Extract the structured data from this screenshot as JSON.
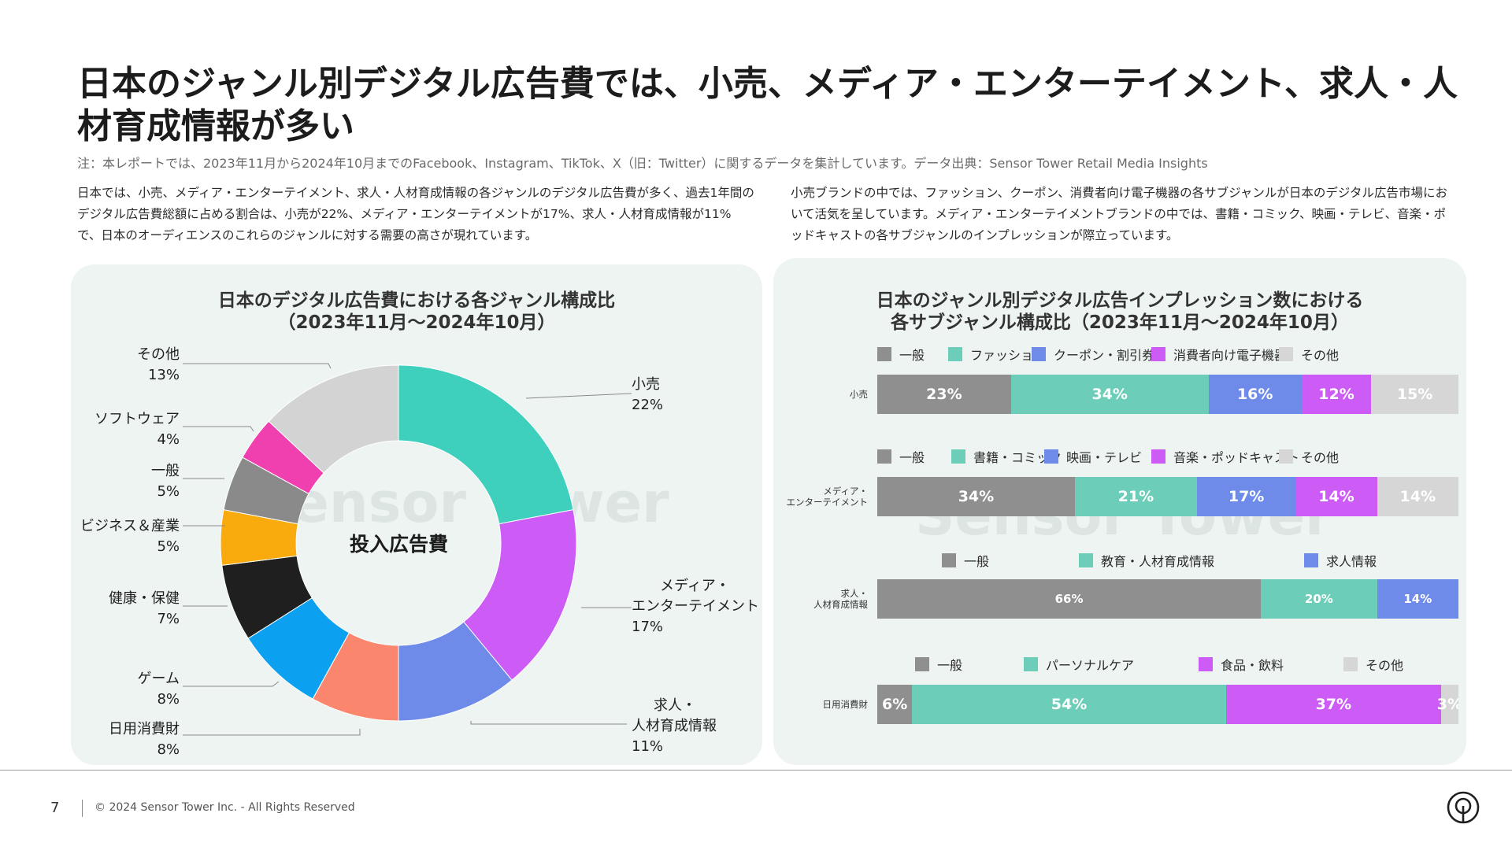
{
  "header": {
    "title": "日本のジャンル別デジタル広告費では、小売、メディア・エンターテイメント、求人・人材育成情報が多い",
    "note": "注：本レポートでは、2023年11月から2024年10月までのFacebook、Instagram、TikTok、X（旧：Twitter）に関するデータを集計しています。データ出典：Sensor Tower Retail Media Insights"
  },
  "description": {
    "left": "日本では、小売、メディア・エンターテイメント、求人・人材育成情報の各ジャンルのデジタル広告費が多く、過去1年間のデジタル広告費総額に占める割合は、小売が22%、メディア・エンターテイメントが17%、求人・人材育成情報が11%で、日本のオーディエンスのこれらのジャンルに対する需要の高さが現れています。",
    "right": "小売ブランドの中では、ファッション、クーポン、消費者向け電子機器の各サブジャンルが日本のデジタル広告市場において活気を呈しています。メディア・エンターテイメントブランドの中では、書籍・コミック、映画・テレビ、音楽・ポッドキャストの各サブジャンルのインプレッションが際立っています。"
  },
  "watermark": "Sensor Tower",
  "chart_data": [
    {
      "type": "pie",
      "title": "日本のデジタル広告費における各ジャンル構成比\n（2023年11月～2024年10月）",
      "center_label": "投入広告費",
      "slices": [
        {
          "label": "小売",
          "value": 22,
          "text": "22%",
          "color": "#3ecfbd"
        },
        {
          "label": "メディア・\nエンターテイメント",
          "value": 17,
          "text": "17%",
          "color": "#cc5cf5"
        },
        {
          "label": "求人・\n人材育成情報",
          "value": 11,
          "text": "11%",
          "color": "#6e8bea"
        },
        {
          "label": "日用消費財",
          "value": 8,
          "text": "8%",
          "color": "#fb866e"
        },
        {
          "label": "ゲーム",
          "value": 8,
          "text": "8%",
          "color": "#0ba0f0"
        },
        {
          "label": "健康・保健",
          "value": 7,
          "text": "7%",
          "color": "#1f1f1f"
        },
        {
          "label": "ビジネス＆産業",
          "value": 5,
          "text": "5%",
          "color": "#f9aa0c"
        },
        {
          "label": "一般",
          "value": 5,
          "text": "5%",
          "color": "#8a8a8a"
        },
        {
          "label": "ソフトウェア",
          "value": 4,
          "text": "4%",
          "color": "#f03fae"
        },
        {
          "label": "その他",
          "value": 13,
          "text": "13%",
          "color": "#d3d3d3"
        }
      ]
    },
    {
      "type": "bar",
      "orientation": "horizontal-stacked-100",
      "title": "日本のジャンル別デジタル広告インプレッション数における\n各サブジャンル構成比（2023年11月～2024年10月）",
      "rows": [
        {
          "label": "小売",
          "series": [
            {
              "name": "一般",
              "value": 23,
              "text": "23%",
              "color": "#8f8f8f"
            },
            {
              "name": "ファッション",
              "value": 34,
              "text": "34%",
              "color": "#6ccdb8"
            },
            {
              "name": "クーポン・割引券",
              "value": 16,
              "text": "16%",
              "color": "#6e8bea"
            },
            {
              "name": "消費者向け電子機器",
              "value": 12,
              "text": "12%",
              "color": "#cc5cf5"
            },
            {
              "name": "その他",
              "value": 15,
              "text": "15%",
              "color": "#d6d6d6"
            }
          ]
        },
        {
          "label": "メディア・\nエンターテイメント",
          "series": [
            {
              "name": "一般",
              "value": 34,
              "text": "34%",
              "color": "#8f8f8f"
            },
            {
              "name": "書籍・コミック",
              "value": 21,
              "text": "21%",
              "color": "#6ccdb8"
            },
            {
              "name": "映画・テレビ",
              "value": 17,
              "text": "17%",
              "color": "#6e8bea"
            },
            {
              "name": "音楽・ポッドキャスト",
              "value": 14,
              "text": "14%",
              "color": "#cc5cf5"
            },
            {
              "name": "その他",
              "value": 14,
              "text": "14%",
              "color": "#d6d6d6"
            }
          ]
        },
        {
          "label": "求人・\n人材育成情報",
          "series": [
            {
              "name": "一般",
              "value": 66,
              "text": "66%",
              "color": "#8f8f8f"
            },
            {
              "name": "教育・人材育成情報",
              "value": 20,
              "text": "20%",
              "color": "#6ccdb8"
            },
            {
              "name": "求人情報",
              "value": 14,
              "text": "14%",
              "color": "#6e8bea"
            }
          ]
        },
        {
          "label": "日用消費財",
          "series": [
            {
              "name": "一般",
              "value": 6,
              "text": "6%",
              "color": "#8f8f8f"
            },
            {
              "name": "パーソナルケア",
              "value": 54,
              "text": "54%",
              "color": "#6ccdb8"
            },
            {
              "name": "食品・飲料",
              "value": 37,
              "text": "37%",
              "color": "#cc5cf5"
            },
            {
              "name": "その他",
              "value": 3,
              "text": "3%",
              "color": "#d6d6d6"
            }
          ]
        }
      ]
    }
  ],
  "footer": {
    "page_number": "7",
    "copyright": "© 2024 Sensor Tower Inc. - All Rights Reserved"
  }
}
